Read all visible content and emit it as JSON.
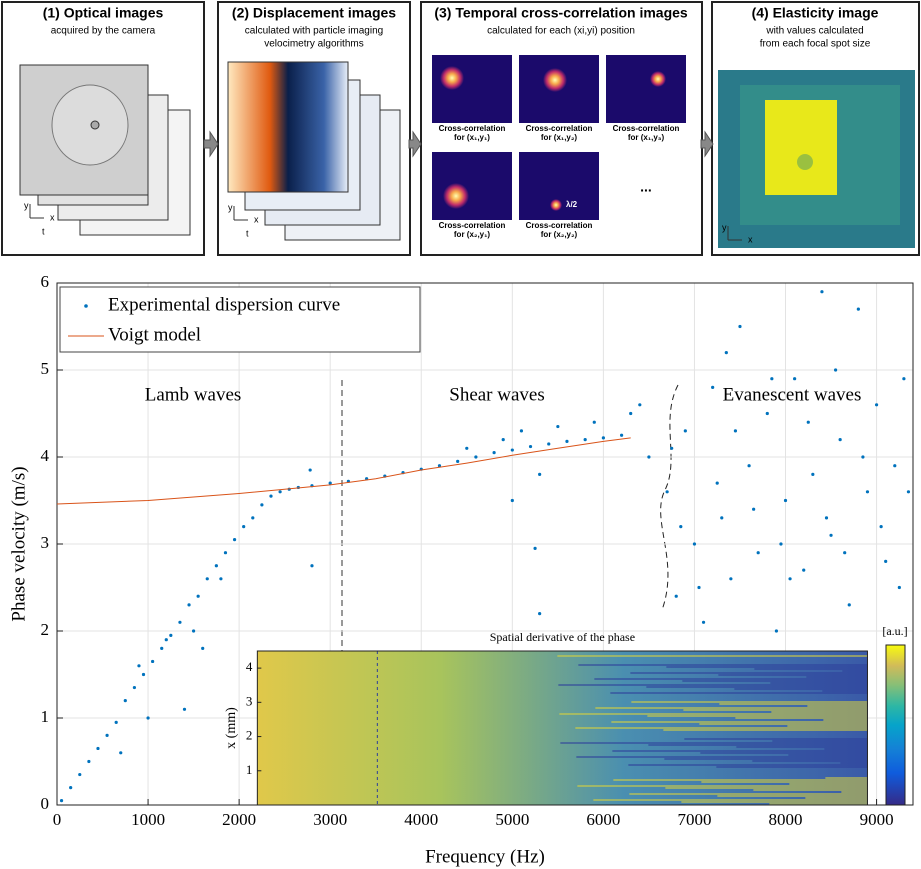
{
  "panels": [
    {
      "title": "(1) Optical images",
      "subtitle": [
        "acquired by the camera"
      ],
      "axis_labels": [
        "y",
        "x",
        "t"
      ]
    },
    {
      "title": "(2) Displacement images",
      "subtitle": [
        "calculated with particle imaging",
        "velocimetry algorithms"
      ],
      "axis_labels": [
        "y",
        "x",
        "t"
      ]
    },
    {
      "title": "(3) Temporal cross-correlation images",
      "subtitle": [
        "calculated for each (xi,yi) position"
      ],
      "captions": [
        [
          "Cross-correlation",
          "for (x₁,y₁)"
        ],
        [
          "Cross-correlation",
          "for (x₁,y₂)"
        ],
        [
          "Cross-correlation",
          "for (x₁,y₃)"
        ],
        [
          "Cross-correlation",
          "for (x₂,y₁)"
        ],
        [
          "Cross-correlation",
          "for (x₂,y₂)"
        ]
      ],
      "marker": "λ/2",
      "ellipsis": "..."
    },
    {
      "title": "(4) Elasticity image",
      "subtitle": [
        "with values calculated",
        "from each focal spot size"
      ],
      "axis_labels": [
        "y",
        "x"
      ]
    }
  ],
  "chart_data": [
    {
      "type": "scatter",
      "xlabel": "Frequency (Hz)",
      "ylabel": "Phase velocity (m/s)",
      "xlim": [
        0,
        9400
      ],
      "ylim": [
        0,
        6
      ],
      "xticks": [
        0,
        1000,
        2000,
        3000,
        4000,
        5000,
        6000,
        7000,
        8000,
        9000
      ],
      "yticks": [
        0,
        1,
        2,
        3,
        4,
        5,
        6
      ],
      "grid": true,
      "legend": "upper-left",
      "annotations": [
        "Lamb waves",
        "Shear waves",
        "Evanescent waves"
      ],
      "series": [
        {
          "name": "Experimental dispersion curve",
          "color": "#0072bd",
          "x": [
            50,
            150,
            250,
            350,
            450,
            550,
            650,
            750,
            850,
            950,
            1050,
            1150,
            1250,
            1350,
            1450,
            1550,
            1650,
            1750,
            1850,
            1950,
            2050,
            2150,
            2250,
            2350,
            2450,
            2550,
            2650,
            700,
            1000,
            1400,
            1600,
            2800,
            2780,
            5000,
            5300,
            1200,
            1800,
            900,
            1500,
            2800,
            3000,
            3200,
            3400,
            3600,
            3800,
            4000,
            4200,
            4400,
            4600,
            4800,
            5000,
            5200,
            5400,
            5600,
            5800,
            6000,
            6200,
            4500,
            4900,
            5100,
            5500,
            5300,
            5900,
            6300,
            6500,
            6400,
            5250,
            6700,
            6800,
            6900,
            7000,
            7100,
            7200,
            7300,
            7400,
            7500,
            7600,
            7700,
            7800,
            7900,
            8000,
            8100,
            8200,
            8300,
            8400,
            8500,
            8600,
            8700,
            8800,
            8900,
            9000,
            9100,
            9200,
            9300,
            6750,
            6850,
            7050,
            7250,
            7450,
            7650,
            7850,
            8050,
            8250,
            8450,
            8650,
            8850,
            9050,
            9250,
            9350,
            7350,
            7950,
            8550
          ],
          "values": [
            0.05,
            0.2,
            0.35,
            0.5,
            0.65,
            0.8,
            0.95,
            1.2,
            1.35,
            1.5,
            1.65,
            1.8,
            1.95,
            2.1,
            2.3,
            2.4,
            2.6,
            2.75,
            2.9,
            3.05,
            3.2,
            3.3,
            3.45,
            3.55,
            3.6,
            3.63,
            3.65,
            0.6,
            1.0,
            1.1,
            1.8,
            2.75,
            3.85,
            3.5,
            2.2,
            1.9,
            2.6,
            1.6,
            2.0,
            3.67,
            3.7,
            3.72,
            3.75,
            3.78,
            3.82,
            3.86,
            3.9,
            3.95,
            4.0,
            4.05,
            4.08,
            4.12,
            4.15,
            4.18,
            4.2,
            4.22,
            4.25,
            4.1,
            4.2,
            4.3,
            4.35,
            3.8,
            4.4,
            4.5,
            4.0,
            4.6,
            2.95,
            3.6,
            2.4,
            4.3,
            3.0,
            2.1,
            4.8,
            3.3,
            2.6,
            5.5,
            3.9,
            2.9,
            4.5,
            2.0,
            3.5,
            4.9,
            2.7,
            3.8,
            5.9,
            3.1,
            4.2,
            2.3,
            5.7,
            3.6,
            4.6,
            2.8,
            3.9,
            4.9,
            4.1,
            3.2,
            2.5,
            3.7,
            4.3,
            3.4,
            4.9,
            2.6,
            4.4,
            3.3,
            2.9,
            4.0,
            3.2,
            2.5,
            3.6,
            5.2,
            3.0,
            5.0
          ]
        },
        {
          "name": "Voigt model",
          "color": "#d95319",
          "x": [
            0,
            1000,
            2000,
            2500,
            3000,
            3500,
            4000,
            4500,
            5000,
            5500,
            6000,
            6300
          ],
          "values": [
            3.46,
            3.5,
            3.58,
            3.63,
            3.68,
            3.75,
            3.85,
            3.93,
            4.02,
            4.1,
            4.18,
            4.22
          ]
        }
      ]
    },
    {
      "type": "heatmap",
      "title": "Spatial derivative of the phase",
      "ylabel": "x (mm)",
      "xlim": [
        2200,
        8900
      ],
      "ylim": [
        0,
        4.5
      ],
      "yticks": [
        1,
        2,
        3,
        4
      ],
      "colorbar_label": "[a.u.]"
    }
  ]
}
